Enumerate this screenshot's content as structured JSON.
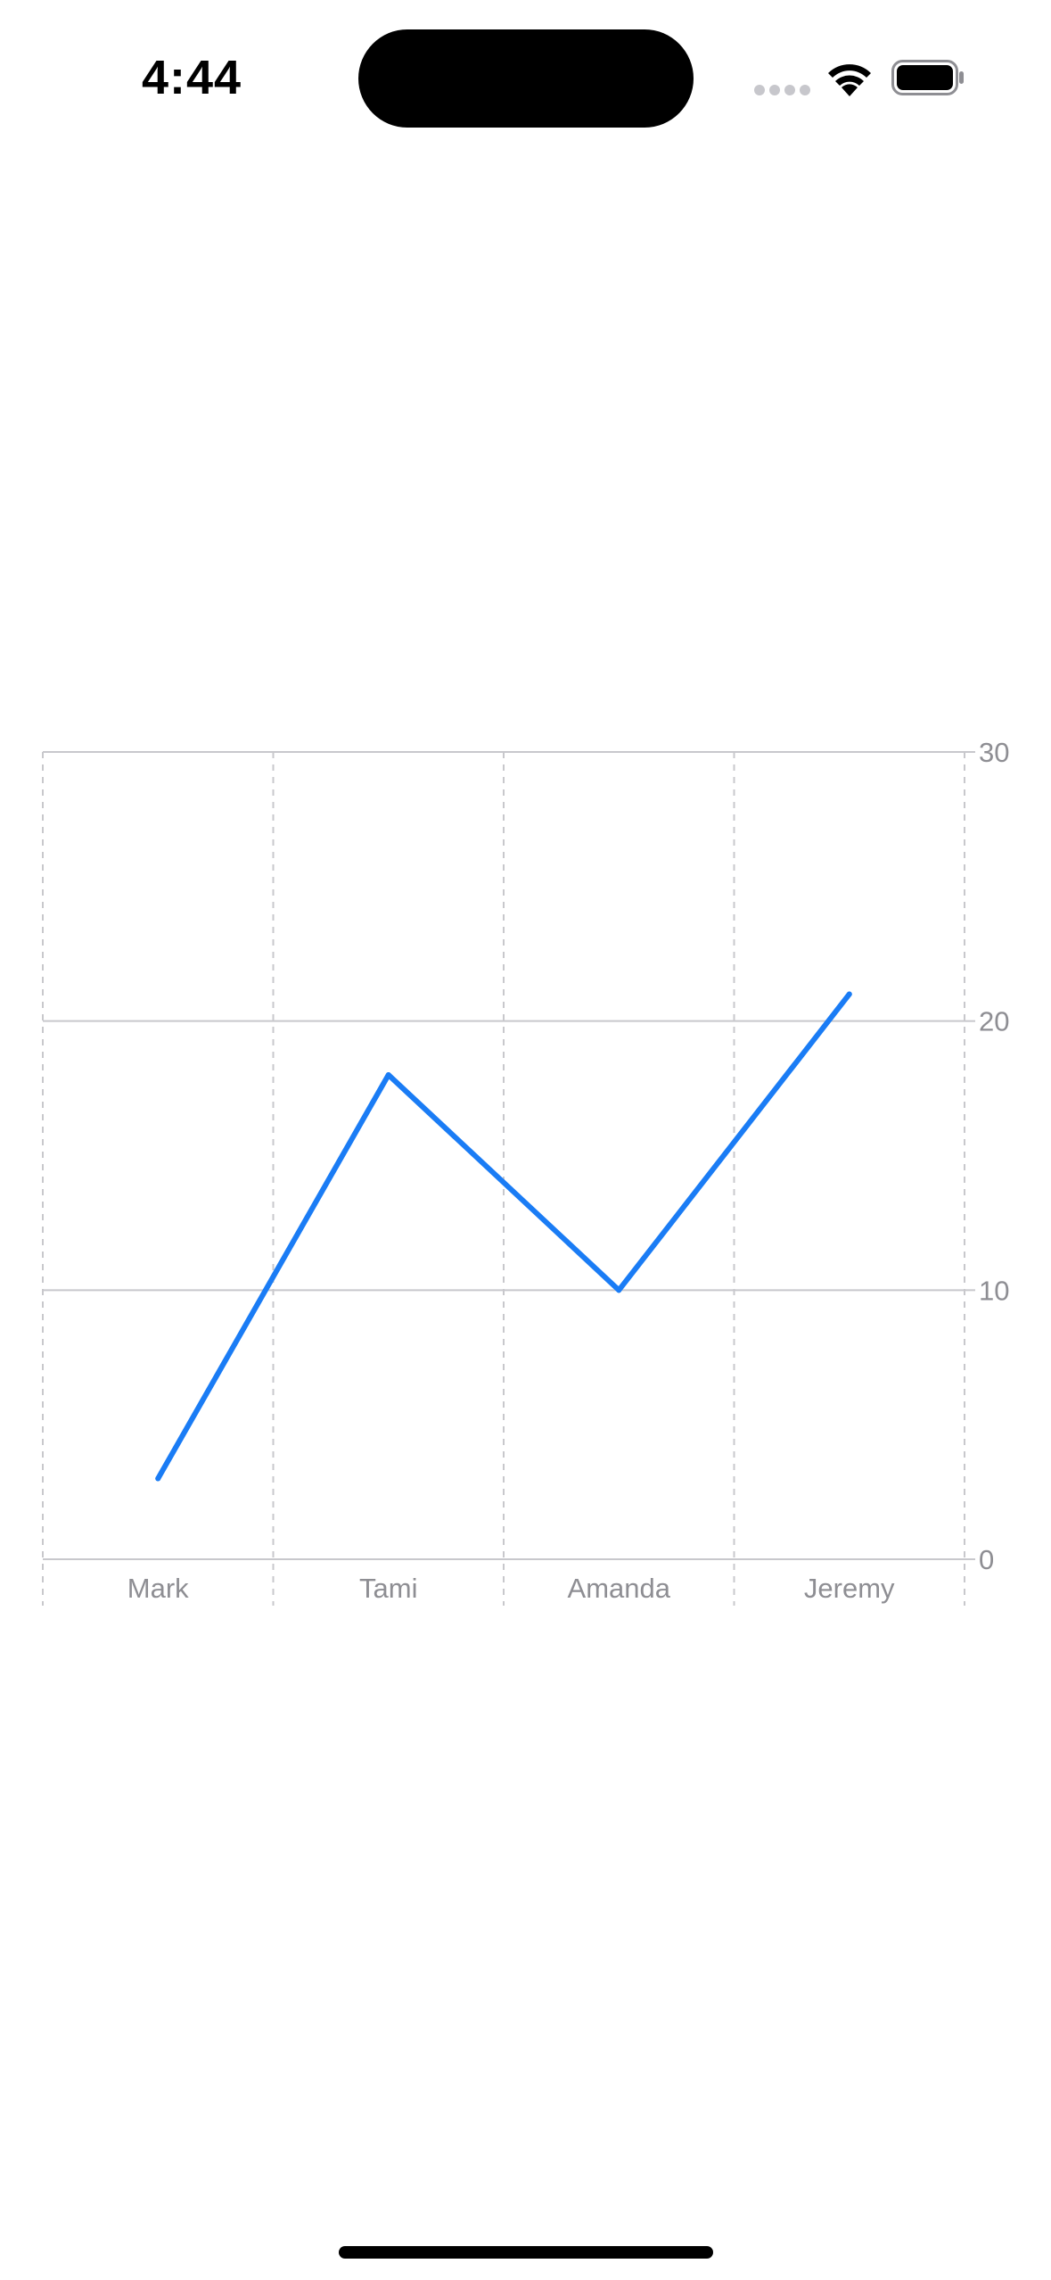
{
  "status_bar": {
    "time": "4:44",
    "icons": [
      "cellular-signal-icon",
      "wifi-icon",
      "battery-icon"
    ]
  },
  "chart_data": {
    "type": "line",
    "categories": [
      "Mark",
      "Tami",
      "Amanda",
      "Jeremy"
    ],
    "values": [
      3,
      18,
      10,
      21
    ],
    "ylim": [
      0,
      30
    ],
    "yticks": [
      0,
      10,
      20,
      30
    ],
    "y_axis_position": "right",
    "grid": true,
    "line_color": "#1a7cf5",
    "grid_color": "#c8c8cc",
    "label_color": "#8e8e93"
  }
}
